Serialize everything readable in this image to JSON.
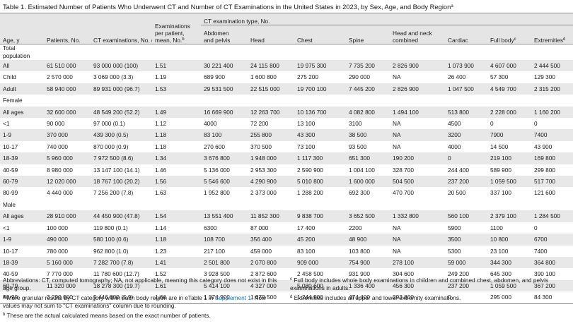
{
  "title": "Table 1. Estimated Number of Patients Who Underwent CT and Number of CT Examinations in the United States in 2023, by Sex, Age, and Body Region",
  "title_mark": "a",
  "header": {
    "age": "Age, y",
    "patients": "Patients, No.",
    "ct_exams": "CT examinations, No. (%)",
    "exams_per_patient_l1": "Examinations",
    "exams_per_patient_l2": "per patient,",
    "exams_per_patient_l3": "mean, No.",
    "exams_per_patient_mark": "b",
    "ct_type_group": "CT examination type, No.",
    "abdomen_l1": "Abdomen",
    "abdomen_l2": "and pelvis",
    "head": "Head",
    "chest": "Chest",
    "spine": "Spine",
    "head_neck_l1": "Head and neck",
    "head_neck_l2": "combined",
    "cardiac": "Cardiac",
    "full_body": "Full body",
    "full_body_mark": "c",
    "extremities": "Extremities",
    "extremities_mark": "d"
  },
  "sections": [
    {
      "label_l1": "Total",
      "label_l2": "population",
      "rows": [
        [
          "All",
          "61 510 000",
          "93 000 000 (100)",
          "1.51",
          "30 221 400",
          "24 115 800",
          "19 975 300",
          "7 735 200",
          "2 826 900",
          "1 073 900",
          "4 607 000",
          "2 444 500"
        ],
        [
          "Child",
          "2 570 000",
          "3 069 000 (3.3)",
          "1.19",
          "689 900",
          "1 600 800",
          "275 200",
          "290 000",
          "NA",
          "26 400",
          "57 300",
          "129 300"
        ],
        [
          "Adult",
          "58 940 000",
          "89 931 000 (96.7)",
          "1.53",
          "29 531 500",
          "22 515 000",
          "19 700 100",
          "7 445 200",
          "2 826 900",
          "1 047 500",
          "4 549 700",
          "2 315 200"
        ]
      ]
    },
    {
      "label_l1": "Female",
      "rows": [
        [
          "All ages",
          "32 600 000",
          "48 549 200 (52.2)",
          "1.49",
          "16 669 900",
          "12 263 700",
          "10 136 700",
          "4 082 800",
          "1 494 100",
          "513 800",
          "2 228 000",
          "1 160 200"
        ],
        [
          "<1",
          "90 000",
          "97 000 (0.1)",
          "1.12",
          "4000",
          "72 200",
          "13 100",
          "3100",
          "NA",
          "4500",
          "0",
          "0"
        ],
        [
          "1-9",
          "370 000",
          "439 300 (0.5)",
          "1.18",
          "83 100",
          "255 800",
          "43 300",
          "38 500",
          "NA",
          "3200",
          "7900",
          "7400"
        ],
        [
          "10-17",
          "740 000",
          "870 000 (0.9)",
          "1.18",
          "270 600",
          "370 500",
          "73 100",
          "93 500",
          "NA",
          "4000",
          "14 500",
          "43 900"
        ],
        [
          "18-39",
          "5 960 000",
          "7 972 500 (8.6)",
          "1.34",
          "3 676 800",
          "1 948 000",
          "1 117 300",
          "651 300",
          "190 200",
          "0",
          "219 100",
          "169 800"
        ],
        [
          "40-59",
          "8 980 000",
          "13 147 100 (14.1)",
          "1.46",
          "5 136 000",
          "2 953 300",
          "2 590 900",
          "1 004 100",
          "328 700",
          "244 400",
          "589 900",
          "299 800"
        ],
        [
          "60-79",
          "12 020 000",
          "18 767 100 (20.2)",
          "1.56",
          "5 546 600",
          "4 290 900",
          "5 010 800",
          "1 600 000",
          "504 500",
          "237 200",
          "1 059 500",
          "517 700"
        ],
        [
          "80-99",
          "4 440 000",
          "7 256 200 (7.8)",
          "1.63",
          "1 952 800",
          "2 373 000",
          "1 288 200",
          "692 300",
          "470 700",
          "20 500",
          "337 100",
          "121 600"
        ]
      ]
    },
    {
      "label_l1": "Male",
      "rows": [
        [
          "All ages",
          "28 910 000",
          "44 450 900 (47.8)",
          "1.54",
          "13 551 400",
          "11 852 300",
          "9 838 700",
          "3 652 500",
          "1 332 800",
          "560 100",
          "2 379 100",
          "1 284 500"
        ],
        [
          "<1",
          "100 000",
          "119 800 (0.1)",
          "1.14",
          "6300",
          "87 000",
          "17 400",
          "2200",
          "NA",
          "5900",
          "1100",
          "0"
        ],
        [
          "1-9",
          "490 000",
          "580 100 (0.6)",
          "1.18",
          "108 700",
          "356 400",
          "45 200",
          "48 900",
          "NA",
          "3500",
          "10 800",
          "6700"
        ],
        [
          "10-17",
          "780 000",
          "962 800 (1.0)",
          "1.23",
          "217 100",
          "459 000",
          "83 100",
          "103 800",
          "NA",
          "5300",
          "23 100",
          "7400"
        ],
        [
          "18-39",
          "5 160 000",
          "7 282 700 (7.8)",
          "1.41",
          "2 501 800",
          "2 070 800",
          "909 000",
          "754 900",
          "278 100",
          "59 000",
          "344 300",
          "364 800"
        ],
        [
          "40-59",
          "7 770 000",
          "11 780 600 (12.7)",
          "1.52",
          "3 928 500",
          "2 872 600",
          "2 458 500",
          "931 900",
          "304 600",
          "249 200",
          "645 300",
          "390 100"
        ],
        [
          "60-79",
          "11 320 000",
          "18 278 300 (19.7)",
          "1.61",
          "5 414 100",
          "4 327 000",
          "5 080 600",
          "1 336 400",
          "456 300",
          "237 200",
          "1 059 500",
          "367 200"
        ],
        [
          "80-99",
          "3 290 000",
          "5 446 600 (5.9)",
          "1.66",
          "1 374 900",
          "1 679 500",
          "1 244 900",
          "474 400",
          "293 800",
          "0",
          "295 000",
          "84 300"
        ]
      ]
    }
  ],
  "footnotes": {
    "abbrev": "Abbreviations: CT, computed tomography; NA, not applicable, meaning this category does not exist in this age group.",
    "a_mark": "a",
    "a_pre": "More granular results by CT category within each body region are in eTable 1 in ",
    "a_link": "Supplement 1",
    "a_post": ". Row values may not sum to \"CT examinations\" column due to rounding.",
    "b_mark": "b",
    "b_text": "These are the actual calculated means based on the exact number of patients.",
    "c_mark": "c",
    "c_text": "Full body includes whole body examinations in children and combined chest, abdomen, and pelvis examinations in adults.",
    "d_mark": "d",
    "d_text": "Extremities includes all upper and lower extremity examinations."
  },
  "colors": {
    "header_bg": "#e5e5e5",
    "stripe_bg": "#e8e8e8",
    "link": "#1f6fb5"
  }
}
